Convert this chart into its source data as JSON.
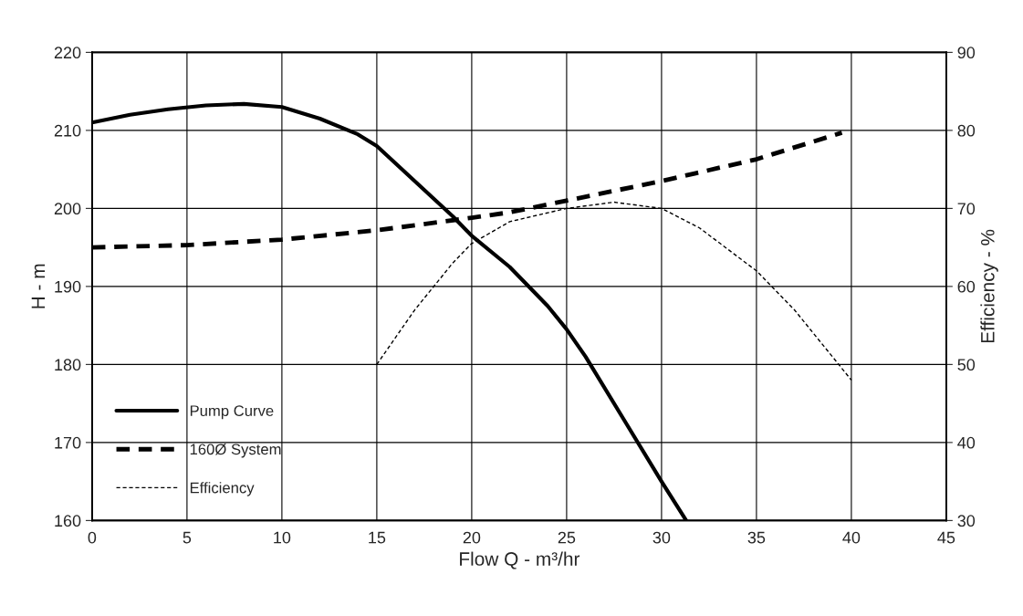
{
  "chart_data": {
    "type": "line",
    "xlabel": "Flow Q - m³/hr",
    "ylabel": "H - m",
    "y2label": "Efficiency - %",
    "xlim": [
      0,
      45
    ],
    "xticks": [
      0,
      5,
      10,
      15,
      20,
      25,
      30,
      35,
      40,
      45
    ],
    "ylim": [
      160,
      220
    ],
    "yticks": [
      160,
      170,
      180,
      190,
      200,
      210,
      220
    ],
    "y2lim": [
      30,
      90
    ],
    "y2ticks": [
      30,
      40,
      50,
      60,
      70,
      80,
      90
    ],
    "grid": true,
    "legend": "bottom left",
    "series": [
      {
        "name": "Pump Curve",
        "color": "#000000",
        "line_style": "solid",
        "x": [
          0,
          2,
          4,
          6,
          8,
          10,
          12,
          14,
          15,
          17,
          19,
          20,
          22,
          24,
          25,
          26,
          28,
          30,
          31.3
        ],
        "values": [
          211,
          212,
          212.7,
          213.2,
          213.4,
          213,
          211.5,
          209.5,
          208,
          203.5,
          199,
          196.5,
          192.5,
          187.5,
          184.5,
          181,
          173,
          165,
          160
        ]
      },
      {
        "name": "160Ø System",
        "color": "#000000",
        "line_style": "dashed",
        "x": [
          0,
          5,
          10,
          15,
          20,
          22,
          25,
          30,
          35,
          39.5
        ],
        "values": [
          195,
          195.3,
          196,
          197.2,
          198.8,
          199.5,
          201,
          203.5,
          206.3,
          209.7
        ]
      },
      {
        "name": "Efficiency",
        "color": "#000000",
        "line_style": "dotted",
        "axis": "y2",
        "x": [
          15,
          17,
          19,
          20,
          22,
          25,
          27.5,
          30,
          32,
          35,
          37,
          40
        ],
        "values": [
          50,
          57,
          63,
          65.5,
          68.3,
          70,
          70.8,
          70,
          67.5,
          62,
          57,
          48
        ]
      }
    ]
  }
}
